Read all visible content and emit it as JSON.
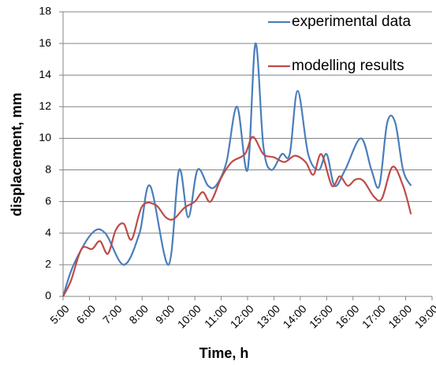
{
  "chart_data": {
    "type": "line",
    "x_label": "Time, h",
    "y_label": "displacement, mm",
    "xlim": [
      5,
      19
    ],
    "xticks": [
      {
        "value": 5,
        "label": "5:00"
      },
      {
        "value": 6,
        "label": "6:00"
      },
      {
        "value": 7,
        "label": "7:00"
      },
      {
        "value": 8,
        "label": "8:00"
      },
      {
        "value": 9,
        "label": "9:00"
      },
      {
        "value": 10,
        "label": "10:00"
      },
      {
        "value": 11,
        "label": "11:00"
      },
      {
        "value": 12,
        "label": "12:00"
      },
      {
        "value": 13,
        "label": "13:00"
      },
      {
        "value": 14,
        "label": "14:00"
      },
      {
        "value": 15,
        "label": "15:00"
      },
      {
        "value": 16,
        "label": "16:00"
      },
      {
        "value": 17,
        "label": "17:00"
      },
      {
        "value": 18,
        "label": "18:00"
      },
      {
        "value": 19,
        "label": "19:00"
      }
    ],
    "ylim": [
      0,
      18
    ],
    "yticks": [
      0,
      2,
      4,
      6,
      8,
      10,
      12,
      14,
      16,
      18
    ],
    "grid": true,
    "legend": "upper right",
    "series": [
      {
        "name": "experimental data",
        "color": "#4a7ebb",
        "x": [
          5.0,
          5.4,
          6.1,
          6.6,
          7.3,
          7.9,
          8.3,
          9.0,
          9.4,
          9.75,
          10.1,
          10.5,
          10.8,
          11.2,
          11.6,
          12.0,
          12.3,
          12.6,
          12.9,
          13.3,
          13.6,
          13.9,
          14.3,
          14.7,
          15.0,
          15.3,
          15.7,
          16.3,
          16.7,
          17.0,
          17.3,
          17.6,
          17.9,
          18.2
        ],
        "values": [
          0,
          2,
          4,
          4,
          2,
          4,
          7,
          2,
          8,
          5,
          8,
          7,
          7,
          8.5,
          12,
          8,
          16,
          9.5,
          8,
          9,
          9,
          13,
          9,
          8,
          9,
          7,
          8,
          10,
          8,
          7,
          11,
          11,
          8,
          7
        ]
      },
      {
        "name": "modelling results",
        "color": "#be4b48",
        "x": [
          5.0,
          5.3,
          5.7,
          6.1,
          6.4,
          6.7,
          7.0,
          7.3,
          7.6,
          8.0,
          8.5,
          8.9,
          9.2,
          9.6,
          10.0,
          10.3,
          10.6,
          11.0,
          11.4,
          11.9,
          12.2,
          12.6,
          13.0,
          13.4,
          13.8,
          14.2,
          14.5,
          14.8,
          15.2,
          15.5,
          15.8,
          16.1,
          16.4,
          16.8,
          17.1,
          17.5,
          17.9,
          18.2
        ],
        "values": [
          0,
          1,
          3,
          3,
          3.5,
          2.7,
          4.2,
          4.6,
          3.6,
          5.7,
          5.8,
          5,
          4.9,
          5.6,
          6,
          6.6,
          6,
          7.5,
          8.5,
          9,
          10.1,
          9,
          8.8,
          8.5,
          8.9,
          8.5,
          7.7,
          9,
          7,
          7.6,
          7,
          7.4,
          7.3,
          6.3,
          6.2,
          8.2,
          7,
          5.2
        ]
      }
    ]
  }
}
